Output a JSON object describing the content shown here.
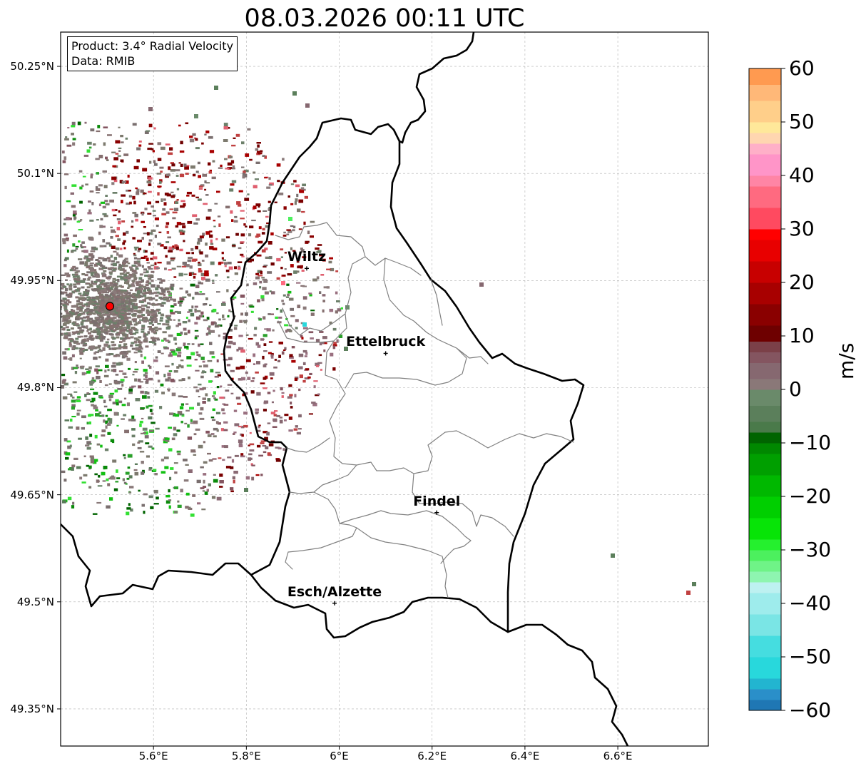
{
  "title": "08.03.2026 00:11 UTC",
  "info_box": {
    "product_line": "Product: 3.4° Radial Velocity",
    "data_line": "Data: RMIB"
  },
  "map_extent": {
    "lon_min": 5.4,
    "lon_max": 6.795,
    "lat_min": 49.298,
    "lat_max": 50.298
  },
  "y_ticks": [
    {
      "lat": 50.25,
      "label": "50.25°N"
    },
    {
      "lat": 50.1,
      "label": "50.1°N"
    },
    {
      "lat": 49.95,
      "label": "49.95°N"
    },
    {
      "lat": 49.8,
      "label": "49.8°N"
    },
    {
      "lat": 49.65,
      "label": "49.65°N"
    },
    {
      "lat": 49.5,
      "label": "49.5°N"
    },
    {
      "lat": 49.35,
      "label": "49.35°N"
    }
  ],
  "x_ticks": [
    {
      "lon": 5.6,
      "label": "5.6°E"
    },
    {
      "lon": 5.8,
      "label": "5.8°E"
    },
    {
      "lon": 6.0,
      "label": "6°E"
    },
    {
      "lon": 6.2,
      "label": "6.2°E"
    },
    {
      "lon": 6.4,
      "label": "6.4°E"
    },
    {
      "lon": 6.6,
      "label": "6.6°E"
    }
  ],
  "cities": [
    {
      "name": "Wiltz",
      "lon": 5.93,
      "lat": 49.967
    },
    {
      "name": "Ettelbruck",
      "lon": 6.1,
      "lat": 49.848
    },
    {
      "name": "Findel",
      "lon": 6.21,
      "lat": 49.625
    },
    {
      "name": "Esch/Alzette",
      "lon": 5.99,
      "lat": 49.498
    }
  ],
  "radar_site": {
    "lon": 5.506,
    "lat": 49.914
  },
  "colorbar": {
    "unit": "m/s",
    "min": -60,
    "max": 60,
    "ticks": [
      {
        "value": 60,
        "label": "60"
      },
      {
        "value": 50,
        "label": "50"
      },
      {
        "value": 40,
        "label": "40"
      },
      {
        "value": 30,
        "label": "30"
      },
      {
        "value": 20,
        "label": "20"
      },
      {
        "value": 10,
        "label": "10"
      },
      {
        "value": 0,
        "label": "0"
      },
      {
        "value": -10,
        "label": "−10"
      },
      {
        "value": -20,
        "label": "−20"
      },
      {
        "value": -30,
        "label": "−30"
      },
      {
        "value": -40,
        "label": "−40"
      },
      {
        "value": -50,
        "label": "−50"
      },
      {
        "value": -60,
        "label": "−60"
      }
    ],
    "segments": [
      {
        "from": -60,
        "to": -58,
        "color": "#1f77b4"
      },
      {
        "from": -58,
        "to": -56,
        "color": "#2a8fc9"
      },
      {
        "from": -56,
        "to": -54,
        "color": "#22b5d0"
      },
      {
        "from": -54,
        "to": -50,
        "color": "#28d8dc"
      },
      {
        "from": -50,
        "to": -46,
        "color": "#45dde0"
      },
      {
        "from": -46,
        "to": -42,
        "color": "#7ae5e5"
      },
      {
        "from": -42,
        "to": -38,
        "color": "#9eecec"
      },
      {
        "from": -38,
        "to": -36,
        "color": "#bdf1f1"
      },
      {
        "from": -36,
        "to": -34,
        "color": "#8ef5b0"
      },
      {
        "from": -34,
        "to": -32,
        "color": "#6ff387"
      },
      {
        "from": -32,
        "to": -30,
        "color": "#4cf05e"
      },
      {
        "from": -30,
        "to": -28,
        "color": "#25f02e"
      },
      {
        "from": -28,
        "to": -24,
        "color": "#07e407"
      },
      {
        "from": -24,
        "to": -20,
        "color": "#00cf00"
      },
      {
        "from": -20,
        "to": -16,
        "color": "#00b800"
      },
      {
        "from": -16,
        "to": -12,
        "color": "#009f00"
      },
      {
        "from": -12,
        "to": -10,
        "color": "#008800"
      },
      {
        "from": -10,
        "to": -8,
        "color": "#006400"
      },
      {
        "from": -8,
        "to": -6,
        "color": "#4a7a4a"
      },
      {
        "from": -6,
        "to": -3,
        "color": "#5b7f5b"
      },
      {
        "from": -3,
        "to": 0,
        "color": "#6a8a6a"
      },
      {
        "from": 0,
        "to": 2,
        "color": "#8a7878"
      },
      {
        "from": 2,
        "to": 5,
        "color": "#866870"
      },
      {
        "from": 5,
        "to": 7,
        "color": "#845560"
      },
      {
        "from": 7,
        "to": 9,
        "color": "#7b4048"
      },
      {
        "from": 9,
        "to": 12,
        "color": "#6e0000"
      },
      {
        "from": 12,
        "to": 16,
        "color": "#8a0000"
      },
      {
        "from": 16,
        "to": 20,
        "color": "#a80000"
      },
      {
        "from": 20,
        "to": 24,
        "color": "#c80000"
      },
      {
        "from": 24,
        "to": 28,
        "color": "#e80000"
      },
      {
        "from": 28,
        "to": 30,
        "color": "#ff0000"
      },
      {
        "from": 30,
        "to": 34,
        "color": "#ff4a60"
      },
      {
        "from": 34,
        "to": 38,
        "color": "#ff6a80"
      },
      {
        "from": 38,
        "to": 40,
        "color": "#ff85a5"
      },
      {
        "from": 40,
        "to": 44,
        "color": "#ff95c8"
      },
      {
        "from": 44,
        "to": 46,
        "color": "#ffb0c8"
      },
      {
        "from": 46,
        "to": 48,
        "color": "#ffd6b0"
      },
      {
        "from": 48,
        "to": 50,
        "color": "#ffe89a"
      },
      {
        "from": 50,
        "to": 54,
        "color": "#ffcf8a"
      },
      {
        "from": 54,
        "to": 57,
        "color": "#ffb878"
      },
      {
        "from": 57,
        "to": 60,
        "color": "#ff9a50"
      }
    ]
  },
  "colors": {
    "border_national": "#000000",
    "border_canton": "#808080",
    "grid": "#b0b0b0",
    "radar_site": "#ff0000"
  }
}
